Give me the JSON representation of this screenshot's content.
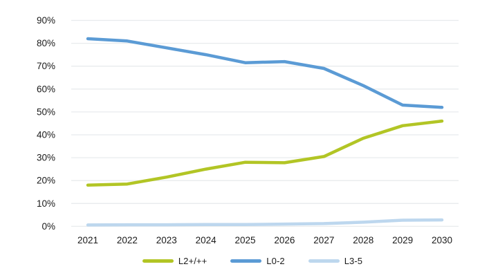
{
  "chart_data": {
    "type": "line",
    "title": "",
    "xlabel": "",
    "ylabel": "",
    "categories": [
      "2021",
      "2022",
      "2023",
      "2024",
      "2025",
      "2026",
      "2027",
      "2028",
      "2029",
      "2030"
    ],
    "series": [
      {
        "name": "L2+/++",
        "color": "#b2c525",
        "values": [
          18,
          18.5,
          21.5,
          25,
          28,
          27.8,
          30.5,
          38.5,
          44,
          46
        ]
      },
      {
        "name": "L0-2",
        "color": "#5b9bd5",
        "values": [
          82,
          81,
          78,
          75,
          71.5,
          72,
          69,
          61.5,
          53,
          52
        ]
      },
      {
        "name": "L3-5",
        "color": "#bdd7ee",
        "values": [
          0.6,
          0.7,
          0.7,
          0.8,
          0.8,
          1.0,
          1.2,
          1.8,
          2.7,
          2.8
        ]
      }
    ],
    "ylim": [
      0,
      90
    ],
    "ytick_step": 10,
    "ytick_labels": [
      "0%",
      "10%",
      "20%",
      "30%",
      "40%",
      "50%",
      "60%",
      "70%",
      "80%",
      "90%"
    ],
    "grid": "horizontal",
    "legend_position": "bottom"
  },
  "style": {
    "gridline_color": "#e8ebed",
    "axis_text_color": "#1a1a1a",
    "background_color": "#ffffff",
    "line_width": 4.5
  }
}
